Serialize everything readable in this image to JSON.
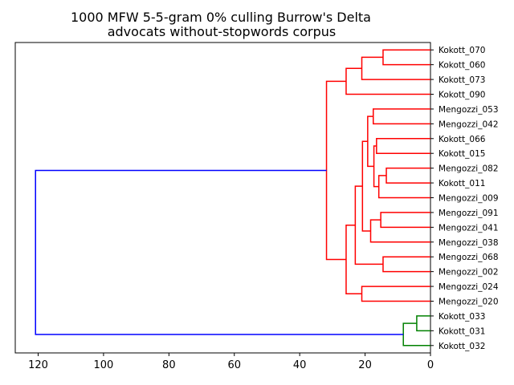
{
  "chart_data": {
    "type": "dendrogram",
    "title_lines": [
      "1000 MFW 5-5-gram 0% culling Burrow's Delta",
      "advocats without-stopwords corpus"
    ],
    "orientation": "left",
    "xlim": [
      127,
      0
    ],
    "x_ticks": [
      120,
      100,
      80,
      60,
      40,
      20,
      0
    ],
    "x_tick_labels": [
      "120",
      "100",
      "80",
      "60",
      "40",
      "20",
      "0"
    ],
    "leaves": [
      "Kokott_070",
      "Kokott_060",
      "Kokott_073",
      "Kokott_090",
      "Mengozzi_053",
      "Mengozzi_042",
      "Kokott_066",
      "Kokott_015",
      "Mengozzi_082",
      "Kokott_011",
      "Mengozzi_009",
      "Mengozzi_091",
      "Mengozzi_041",
      "Mengozzi_038",
      "Mengozzi_068",
      "Mengozzi_002",
      "Mengozzi_024",
      "Mengozzi_020",
      "Kokott_033",
      "Kokott_031",
      "Kokott_032"
    ],
    "colors": {
      "cluster_a": "#ff0000",
      "cluster_b": "#008000",
      "root": "#0000ff"
    },
    "merges": [
      {
        "a": "L0",
        "b": "L1",
        "height": 14.5,
        "color": "cluster_a"
      },
      {
        "a": "M0",
        "b": "L2",
        "height": 21.0,
        "color": "cluster_a"
      },
      {
        "a": "M1",
        "b": "L3",
        "height": 25.8,
        "color": "cluster_a"
      },
      {
        "a": "L4",
        "b": "L5",
        "height": 17.5,
        "color": "cluster_a"
      },
      {
        "a": "L6",
        "b": "L7",
        "height": 16.5,
        "color": "cluster_a"
      },
      {
        "a": "L8",
        "b": "L9",
        "height": 13.5,
        "color": "cluster_a"
      },
      {
        "a": "M5",
        "b": "L10",
        "height": 15.8,
        "color": "cluster_a"
      },
      {
        "a": "M4",
        "b": "M6",
        "height": 17.3,
        "color": "cluster_a"
      },
      {
        "a": "M3",
        "b": "M7",
        "height": 19.2,
        "color": "cluster_a"
      },
      {
        "a": "L11",
        "b": "L12",
        "height": 15.2,
        "color": "cluster_a"
      },
      {
        "a": "M9",
        "b": "L13",
        "height": 18.3,
        "color": "cluster_a"
      },
      {
        "a": "M8",
        "b": "M10",
        "height": 20.8,
        "color": "cluster_a"
      },
      {
        "a": "L14",
        "b": "L15",
        "height": 14.5,
        "color": "cluster_a"
      },
      {
        "a": "M11",
        "b": "M12",
        "height": 23.0,
        "color": "cluster_a"
      },
      {
        "a": "L16",
        "b": "L17",
        "height": 21.0,
        "color": "cluster_a"
      },
      {
        "a": "M13",
        "b": "M14",
        "height": 25.8,
        "color": "cluster_a"
      },
      {
        "a": "M2",
        "b": "M15",
        "height": 31.8,
        "color": "cluster_a"
      },
      {
        "a": "L18",
        "b": "L19",
        "height": 4.2,
        "color": "cluster_b"
      },
      {
        "a": "M17",
        "b": "L20",
        "height": 8.3,
        "color": "cluster_b"
      },
      {
        "a": "M16",
        "b": "M18",
        "height": 120.8,
        "color": "root"
      }
    ]
  }
}
